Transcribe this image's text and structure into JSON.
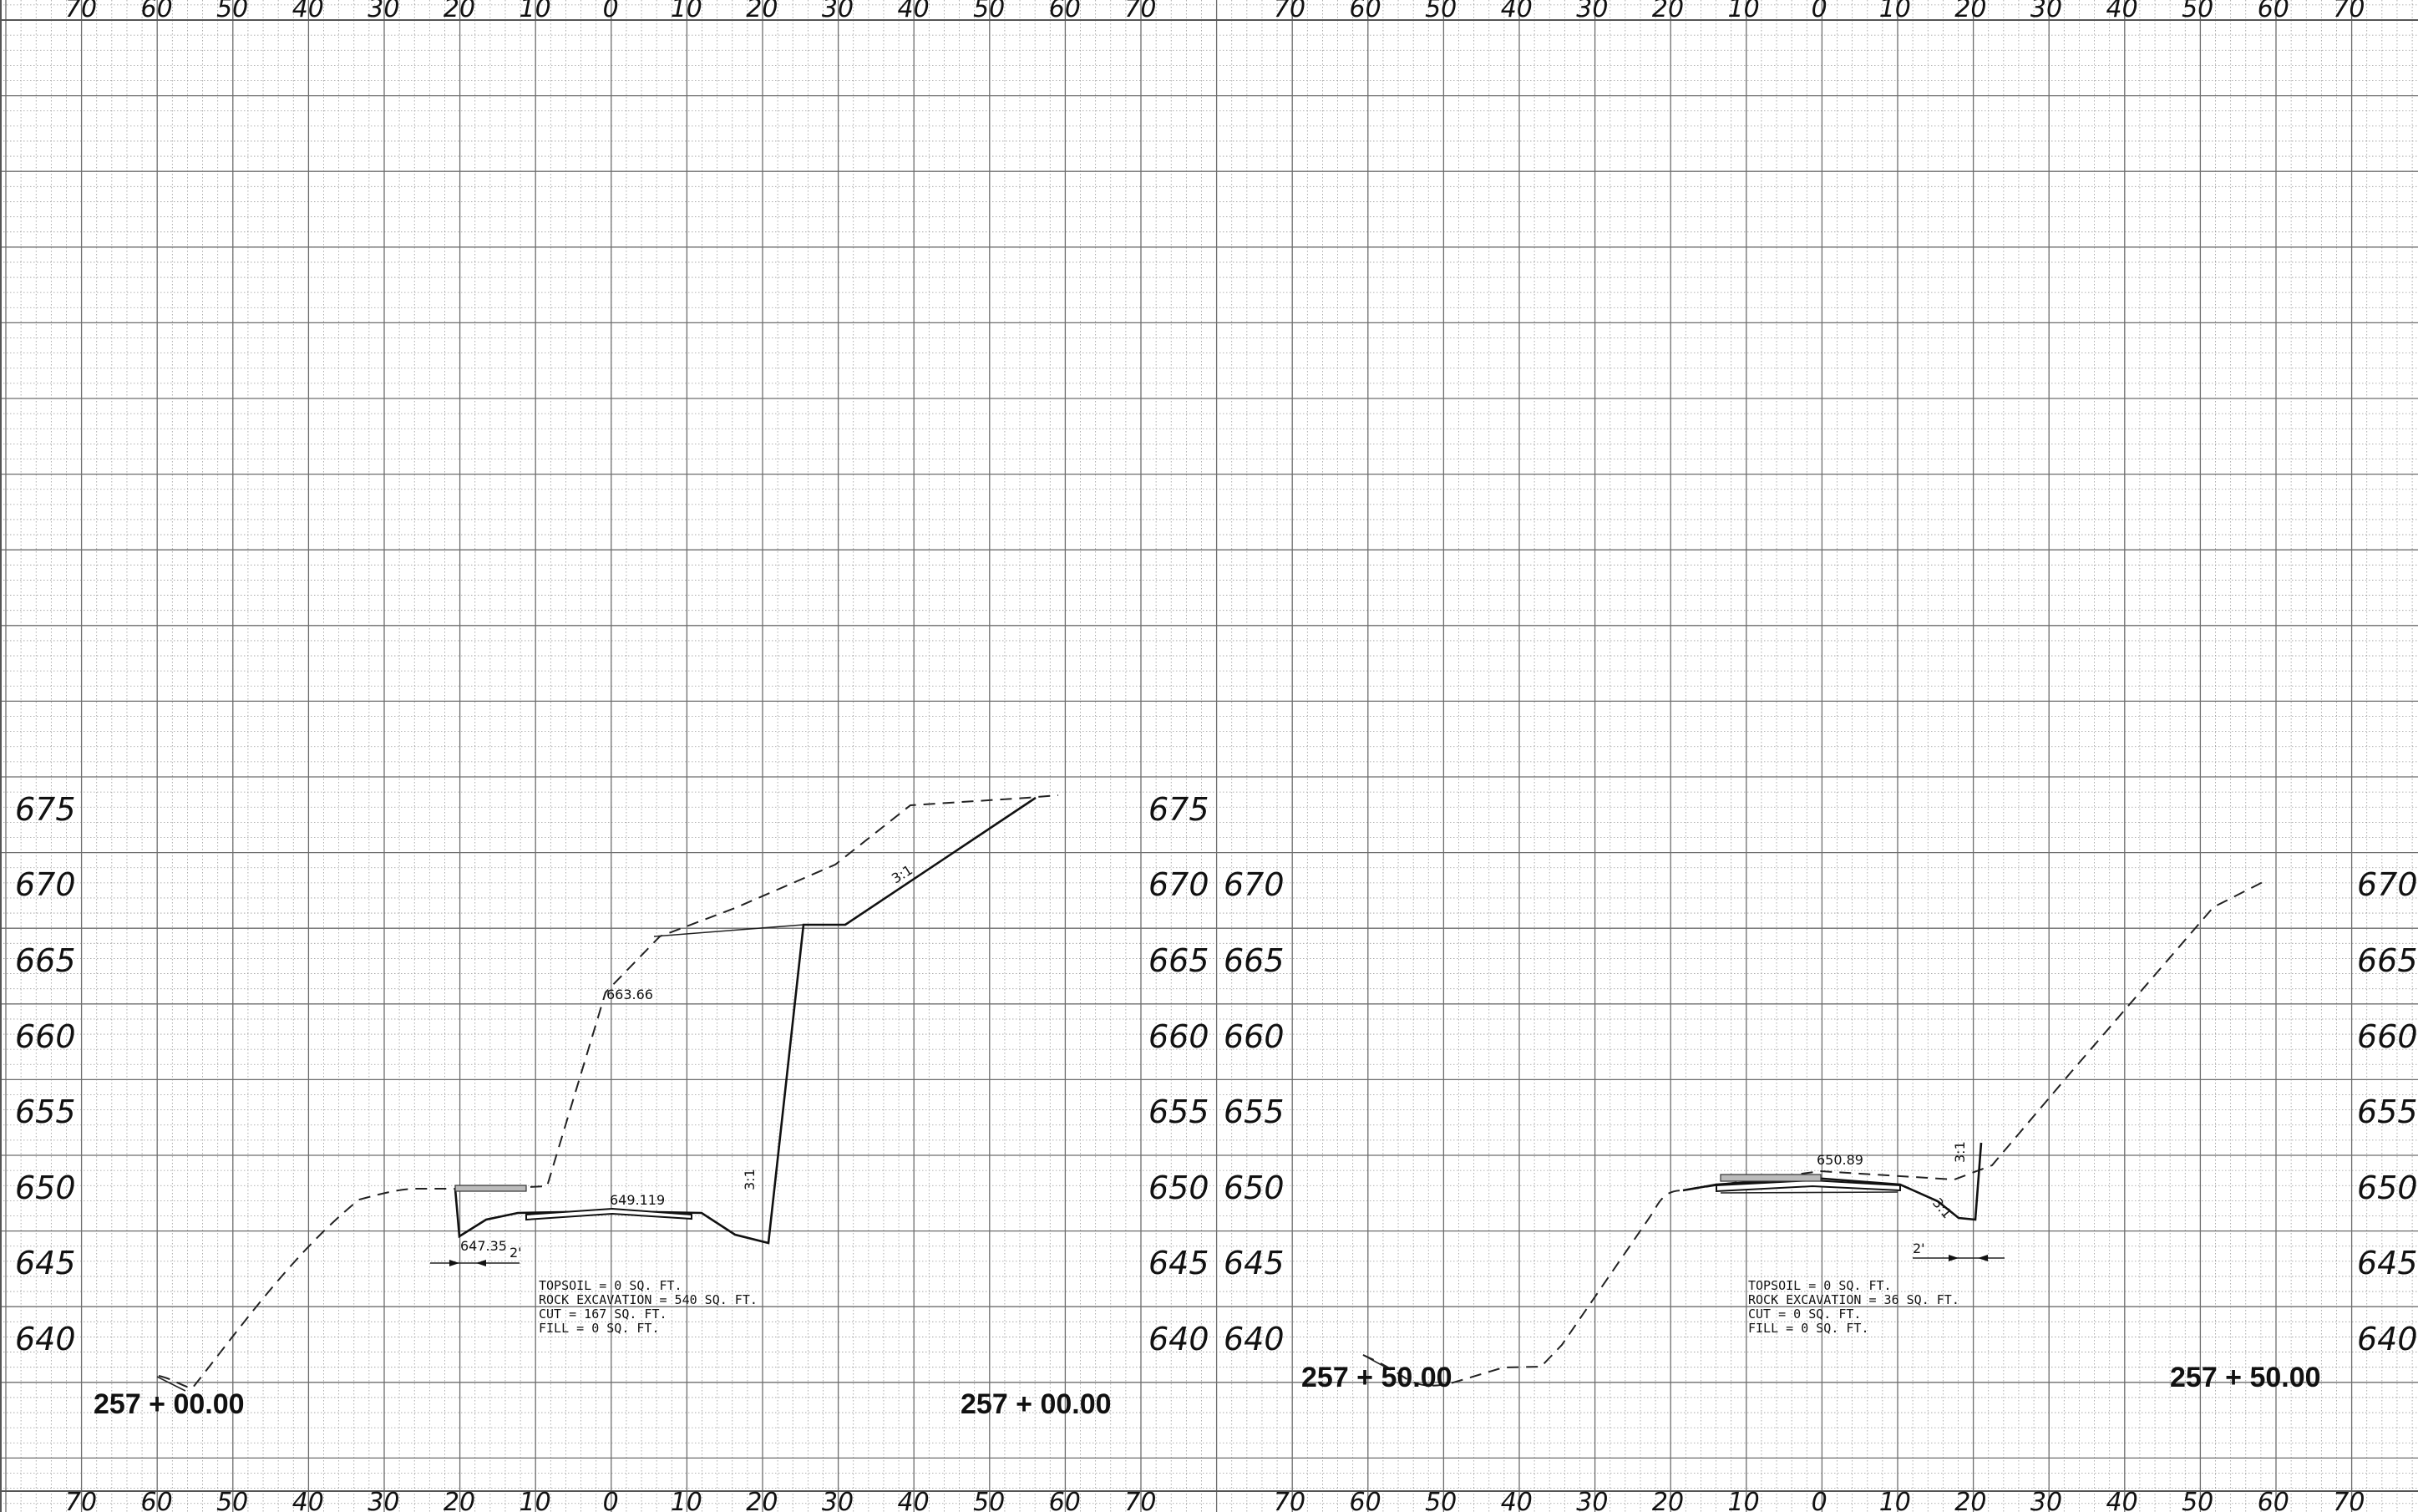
{
  "sheet": {
    "offset_ticks": [
      "70",
      "60",
      "50",
      "40",
      "30",
      "20",
      "10",
      "0",
      "10",
      "20",
      "30",
      "40",
      "50",
      "60",
      "70"
    ],
    "elevations": [
      "675",
      "670",
      "665",
      "660",
      "655",
      "650",
      "645",
      "640"
    ],
    "right_elevations": [
      "670",
      "665",
      "660",
      "655",
      "650",
      "645",
      "640"
    ]
  },
  "sections": [
    {
      "station_left": "257 + 00.00",
      "station_right": "257 + 00.00",
      "labels": {
        "elev_top": "663.66",
        "elev_road": "649.119",
        "elev_ditch": "647.35",
        "slope": "3:1",
        "ditch_width": "2'"
      },
      "notes": [
        "TOPSOIL = 0 SQ. FT.",
        "ROCK EXCAVATION = 540 SQ. FT.",
        "CUT = 167 SQ. FT.",
        "FILL = 0 SQ. FT."
      ]
    },
    {
      "station_left": "257 + 50.00",
      "station_right": "257 + 50.00",
      "labels": {
        "elev_road": "650.89",
        "slope": "3:1",
        "ditch_width": "2'"
      },
      "notes": [
        "TOPSOIL = 0 SQ. FT.",
        "ROCK EXCAVATION = 36 SQ. FT.",
        "CUT = 0 SQ. FT.",
        "FILL = 0 SQ. FT."
      ]
    }
  ]
}
